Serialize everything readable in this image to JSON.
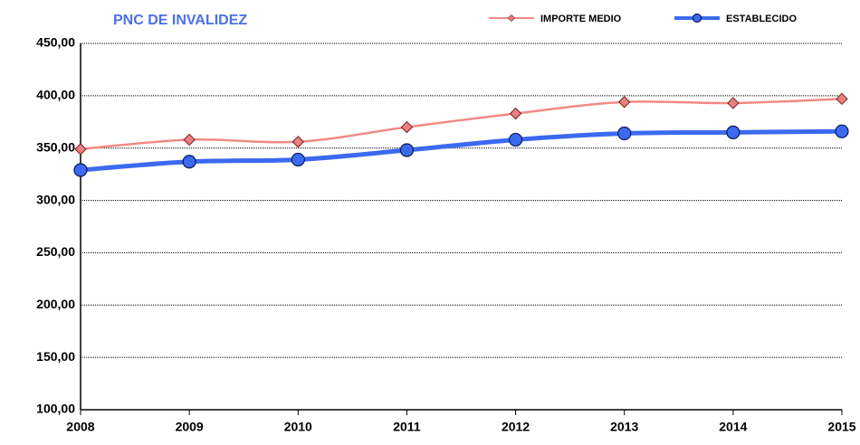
{
  "chart_data": {
    "type": "line",
    "title": "PNC DE INVALIDEZ",
    "categories": [
      "2008",
      "2009",
      "2010",
      "2011",
      "2012",
      "2013",
      "2014",
      "2015"
    ],
    "series": [
      {
        "name": "IMPORTE MEDIO",
        "color": "#f08a84",
        "marker_color": "#e8817f",
        "values": [
          349,
          358,
          356,
          370,
          383,
          394,
          393,
          397
        ]
      },
      {
        "name": "ESTABLECIDO",
        "color": "#3b6af0",
        "marker_color": "#3b6af0",
        "values": [
          329,
          337,
          339,
          348,
          358,
          364,
          365,
          366
        ]
      }
    ],
    "ylim": [
      100,
      450
    ],
    "yticks": [
      {
        "value": 100,
        "label": "100,00"
      },
      {
        "value": 150,
        "label": "150,00"
      },
      {
        "value": 200,
        "label": "200,00"
      },
      {
        "value": 250,
        "label": "250,00"
      },
      {
        "value": 300,
        "label": "300,00"
      },
      {
        "value": 350,
        "label": "350,00"
      },
      {
        "value": 400,
        "label": "400,00"
      },
      {
        "value": 450,
        "label": "450,00"
      }
    ],
    "grid": true,
    "legend": "top-right"
  }
}
